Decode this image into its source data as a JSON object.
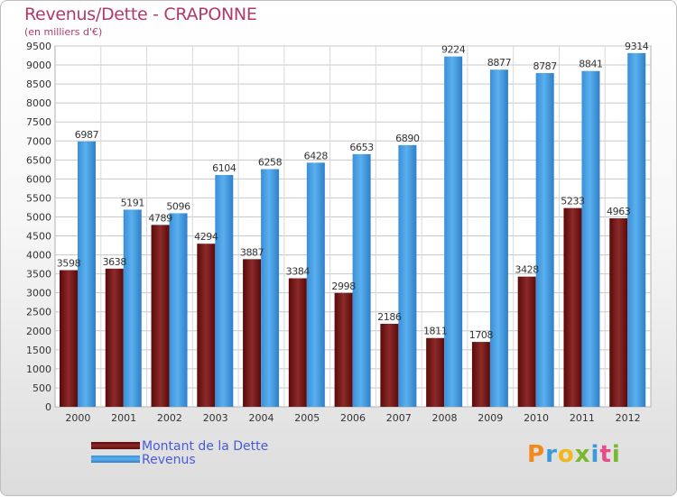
{
  "chart_data": {
    "type": "bar",
    "title": "Revenus/Dette - CRAPONNE",
    "subtitle": "(en milliers d'€)",
    "categories": [
      "2000",
      "2001",
      "2002",
      "2003",
      "2004",
      "2005",
      "2006",
      "2007",
      "2008",
      "2009",
      "2010",
      "2011",
      "2012"
    ],
    "series": [
      {
        "name": "Montant de la Dette",
        "color": "#7a1a1a",
        "values": [
          3598,
          3638,
          4789,
          4294,
          3887,
          3384,
          2998,
          2186,
          1811,
          1708,
          3428,
          5233,
          4963
        ],
        "labels": [
          "3598",
          "3638",
          "4789",
          "4294",
          "3887",
          "3384",
          "2998",
          "2186",
          "1811",
          "1708",
          "3428",
          "5233",
          "4963"
        ]
      },
      {
        "name": "Revenus",
        "color": "#4aa3e8",
        "values": [
          6987,
          5191,
          5096,
          6104,
          6258,
          6428,
          6653,
          6890,
          9224,
          8877,
          8787,
          8841,
          9314
        ],
        "labels": [
          "6987",
          "5191",
          "5096",
          "6104",
          "6258",
          "6428",
          "6653",
          "6890",
          "9224",
          "8877",
          "8787",
          "8841",
          "9314"
        ]
      }
    ],
    "yticks": [
      "0",
      "500",
      "1000",
      "1500",
      "2000",
      "2500",
      "3000",
      "3500",
      "4000",
      "4500",
      "5000",
      "5500",
      "6000",
      "6500",
      "7000",
      "7500",
      "8000",
      "8500",
      "9000",
      "9500"
    ],
    "ylim": [
      0,
      9500
    ],
    "grid": true,
    "legend_position": "bottom-left"
  },
  "logo": {
    "letters": [
      "P",
      "r",
      "o",
      "x",
      "i",
      "t",
      "i"
    ],
    "colors": [
      "#f08a1c",
      "#3a9ad9",
      "#f0b81c",
      "#7ab82e",
      "#3a9ad9",
      "#e84a8a",
      "#7ab82e"
    ]
  }
}
